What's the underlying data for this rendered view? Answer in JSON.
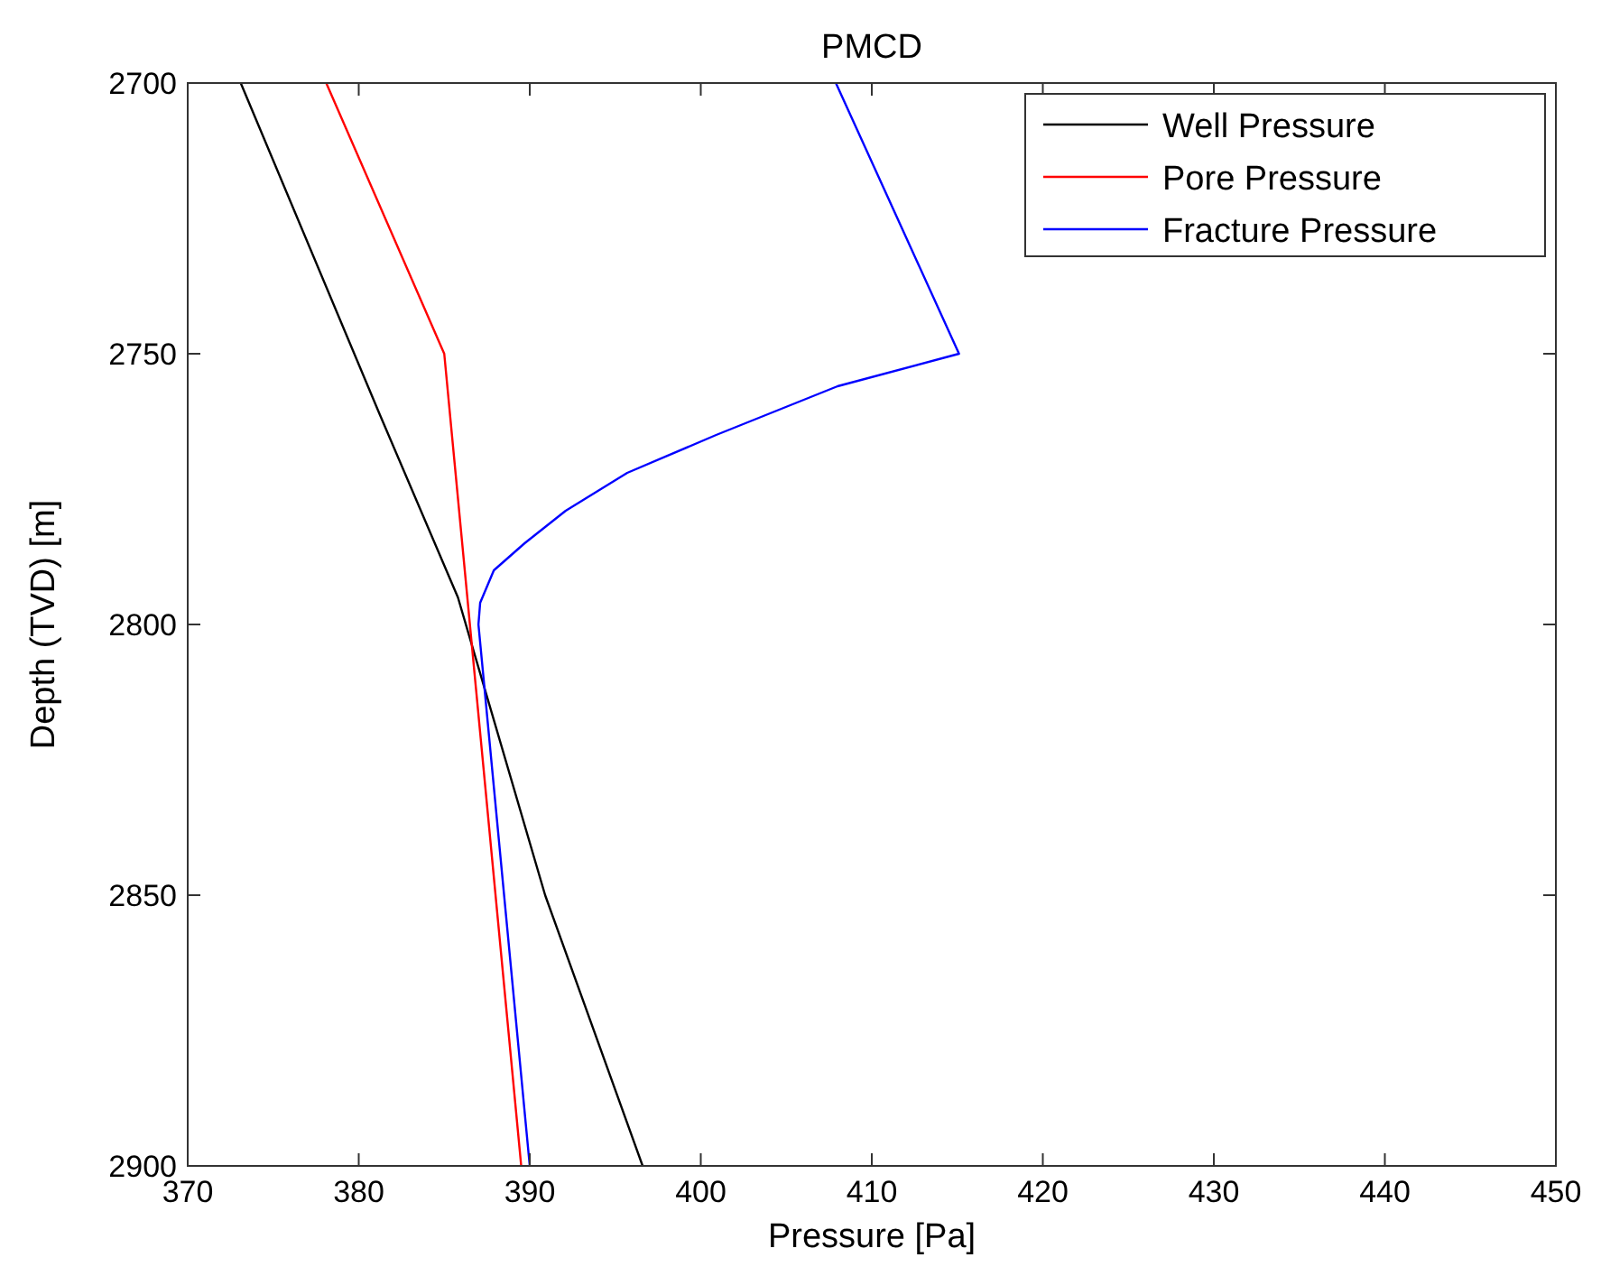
{
  "chart_data": {
    "type": "line",
    "title": "PMCD",
    "xlabel": "Pressure [Pa]",
    "ylabel": "Depth (TVD) [m]",
    "xlim": [
      370,
      450
    ],
    "xticks": [
      370,
      380,
      390,
      400,
      410,
      420,
      430,
      440,
      450
    ],
    "ylim": [
      2900,
      2700
    ],
    "yticks": [
      2700,
      2750,
      2800,
      2850,
      2900
    ],
    "grid": false,
    "legend": "top right",
    "line_style": "solid",
    "marker": "none",
    "series": [
      {
        "name": "Well Pressure",
        "color": "#000000",
        "x": [
          373.1,
          381.2,
          385.8,
          390.9,
          396.6
        ],
        "values": [
          2700,
          2761,
          2795,
          2850,
          2900
        ]
      },
      {
        "name": "Pore Pressure",
        "color": "#ff0000",
        "x": [
          378.1,
          385.0,
          389.5
        ],
        "values": [
          2700,
          2750,
          2900
        ]
      },
      {
        "name": "Fracture Pressure",
        "color": "#0000ff",
        "x": [
          407.9,
          415.1,
          408.0,
          400.9,
          395.7,
          392.1,
          389.7,
          387.9,
          387.1,
          387.0,
          390.0
        ],
        "values": [
          2700,
          2750,
          2756,
          2765,
          2772,
          2779,
          2785,
          2790,
          2796,
          2800,
          2900
        ]
      }
    ]
  }
}
